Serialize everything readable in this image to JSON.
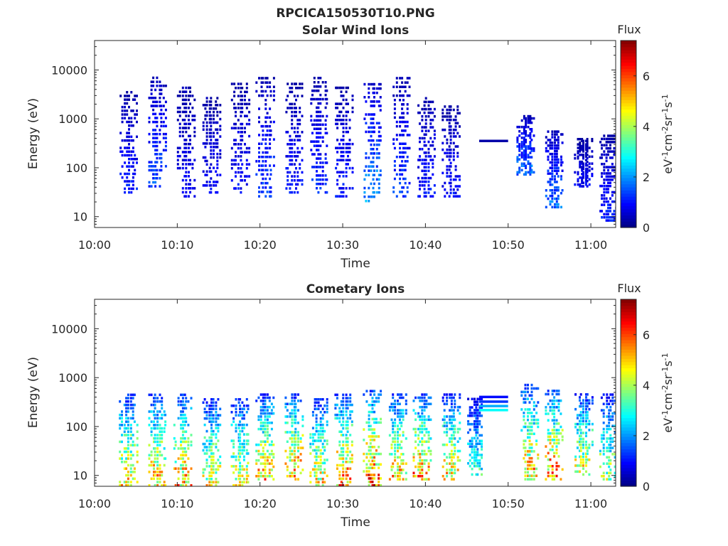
{
  "figure_title": "RPCICA150530T10.PNG",
  "chart_data": [
    {
      "type": "heatmap",
      "title": "Solar Wind Ions",
      "xlabel": "Time",
      "ylabel": "Energy (eV)",
      "y_scale": "log",
      "xlim": [
        "10:00",
        "11:03"
      ],
      "ylim": [
        6,
        40000
      ],
      "x_ticks": [
        "10:00",
        "10:10",
        "10:20",
        "10:30",
        "10:40",
        "10:50",
        "11:00"
      ],
      "y_ticks": [
        "10",
        "100",
        "1000",
        "10000"
      ],
      "colorbar": {
        "title": "Flux",
        "label": "eV-1cm-2sr-1s-1",
        "ticks": [
          "0",
          "2",
          "4",
          "6"
        ],
        "range": [
          0,
          7.4
        ],
        "colormap": "jet"
      },
      "bursts": [
        {
          "time": "10:04",
          "e_min": 30,
          "e_max": 4000,
          "level": 1.0
        },
        {
          "time": "10:07.5",
          "e_min": 40,
          "e_max": 8000,
          "level": 1.3
        },
        {
          "time": "10:11",
          "e_min": 25,
          "e_max": 5000,
          "level": 0.8
        },
        {
          "time": "10:14",
          "e_min": 30,
          "e_max": 3000,
          "level": 0.8
        },
        {
          "time": "10:17.5",
          "e_min": 30,
          "e_max": 6000,
          "level": 0.9
        },
        {
          "time": "10:20.5",
          "e_min": 25,
          "e_max": 8000,
          "level": 1.2
        },
        {
          "time": "10:24",
          "e_min": 30,
          "e_max": 6000,
          "level": 0.9
        },
        {
          "time": "10:27",
          "e_min": 30,
          "e_max": 8000,
          "level": 1.1
        },
        {
          "time": "10:30",
          "e_min": 25,
          "e_max": 5000,
          "level": 1.0
        },
        {
          "time": "10:33.5",
          "e_min": 20,
          "e_max": 6000,
          "level": 1.8
        },
        {
          "time": "10:37",
          "e_min": 25,
          "e_max": 8000,
          "level": 1.2
        },
        {
          "time": "10:40",
          "e_min": 25,
          "e_max": 3000,
          "level": 1.0
        },
        {
          "time": "10:43",
          "e_min": 25,
          "e_max": 2000,
          "level": 0.9
        },
        {
          "time": "10:52",
          "e_min": 70,
          "e_max": 1200,
          "level": 1.5
        },
        {
          "time": "10:55.5",
          "e_min": 15,
          "e_max": 600,
          "level": 1.5
        },
        {
          "time": "10:59",
          "e_min": 40,
          "e_max": 400,
          "level": 0.8
        },
        {
          "time": "11:02",
          "e_min": 8,
          "e_max": 500,
          "level": 1.0
        }
      ],
      "lines": [
        {
          "t_start": "10:46.5",
          "t_end": "10:50",
          "energy": 350,
          "level": 0.3
        }
      ]
    },
    {
      "type": "heatmap",
      "title": "Cometary Ions",
      "xlabel": "Time",
      "ylabel": "Energy (eV)",
      "y_scale": "log",
      "xlim": [
        "10:00",
        "11:03"
      ],
      "ylim": [
        6,
        40000
      ],
      "x_ticks": [
        "10:00",
        "10:10",
        "10:20",
        "10:30",
        "10:40",
        "10:50",
        "11:00"
      ],
      "y_ticks": [
        "10",
        "100",
        "1000",
        "10000"
      ],
      "colorbar": {
        "title": "Flux",
        "label": "eV-1cm-2sr-1s-1",
        "ticks": [
          "0",
          "2",
          "4",
          "6"
        ],
        "range": [
          0,
          7.4
        ],
        "colormap": "jet"
      },
      "bursts": [
        {
          "time": "10:04",
          "e_min": 6,
          "e_max": 500,
          "level": 4.3
        },
        {
          "time": "10:07.5",
          "e_min": 6,
          "e_max": 500,
          "level": 4.5
        },
        {
          "time": "10:10.5",
          "e_min": 6,
          "e_max": 500,
          "level": 4.6
        },
        {
          "time": "10:14",
          "e_min": 6,
          "e_max": 400,
          "level": 4.0
        },
        {
          "time": "10:17.5",
          "e_min": 6,
          "e_max": 400,
          "level": 4.0
        },
        {
          "time": "10:20.5",
          "e_min": 8,
          "e_max": 500,
          "level": 4.5
        },
        {
          "time": "10:24",
          "e_min": 8,
          "e_max": 500,
          "level": 4.8
        },
        {
          "time": "10:27",
          "e_min": 6,
          "e_max": 400,
          "level": 4.2
        },
        {
          "time": "10:30",
          "e_min": 6,
          "e_max": 500,
          "level": 4.8
        },
        {
          "time": "10:33.5",
          "e_min": 6,
          "e_max": 600,
          "level": 5.2
        },
        {
          "time": "10:36.5",
          "e_min": 8,
          "e_max": 500,
          "level": 4.5
        },
        {
          "time": "10:39.5",
          "e_min": 8,
          "e_max": 500,
          "level": 4.8
        },
        {
          "time": "10:43",
          "e_min": 8,
          "e_max": 500,
          "level": 4.3
        },
        {
          "time": "10:46",
          "e_min": 10,
          "e_max": 400,
          "level": 2.8
        },
        {
          "time": "10:52.5",
          "e_min": 8,
          "e_max": 800,
          "level": 4.6
        },
        {
          "time": "10:55.5",
          "e_min": 8,
          "e_max": 600,
          "level": 5.0
        },
        {
          "time": "10:59",
          "e_min": 10,
          "e_max": 500,
          "level": 4.0
        },
        {
          "time": "11:02",
          "e_min": 8,
          "e_max": 500,
          "level": 3.5
        }
      ],
      "lines": [
        {
          "t_start": "10:46.5",
          "t_end": "10:50",
          "energy": 400,
          "level": 1.0
        },
        {
          "t_start": "10:46.5",
          "t_end": "10:50",
          "energy": 320,
          "level": 1.3
        },
        {
          "t_start": "10:46.5",
          "t_end": "10:50",
          "energy": 260,
          "level": 2.2
        },
        {
          "t_start": "10:46.5",
          "t_end": "10:50",
          "energy": 215,
          "level": 2.8
        }
      ]
    }
  ]
}
